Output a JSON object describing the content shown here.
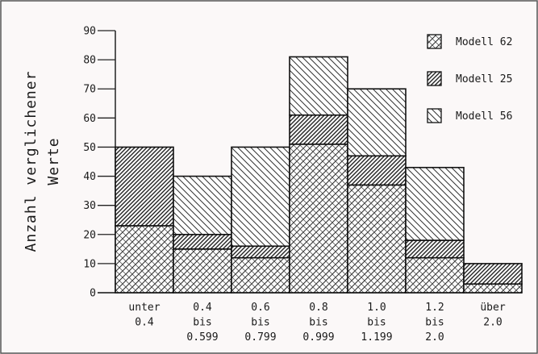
{
  "chart_data": {
    "type": "bar",
    "stacked": true,
    "title": "",
    "xlabel": "",
    "ylabel": [
      "Anzahl verglichener",
      "Werte"
    ],
    "ylim": [
      0,
      90
    ],
    "yticks": [
      0,
      10,
      20,
      30,
      40,
      50,
      60,
      70,
      80,
      90
    ],
    "categories": [
      [
        "unter",
        "0.4"
      ],
      [
        "0.4",
        "bis",
        "0.599"
      ],
      [
        "0.6",
        "bis",
        "0.799"
      ],
      [
        "0.8",
        "bis",
        "0.999"
      ],
      [
        "1.0",
        "bis",
        "1.199"
      ],
      [
        "1.2",
        "bis",
        "2.0"
      ],
      [
        "über",
        "2.0"
      ]
    ],
    "series": [
      {
        "name": "Modell 62",
        "pattern": "crosshatch",
        "values": [
          23,
          15,
          12,
          51,
          37,
          12,
          3
        ]
      },
      {
        "name": "Modell 25",
        "pattern": "dense-diagonal",
        "values": [
          27,
          5,
          4,
          10,
          10,
          6,
          7
        ]
      },
      {
        "name": "Modell 56",
        "pattern": "sparse-backdiagonal",
        "values": [
          0,
          20,
          34,
          20,
          23,
          25,
          0
        ]
      }
    ],
    "legend_position": "top-right",
    "grid": false
  }
}
